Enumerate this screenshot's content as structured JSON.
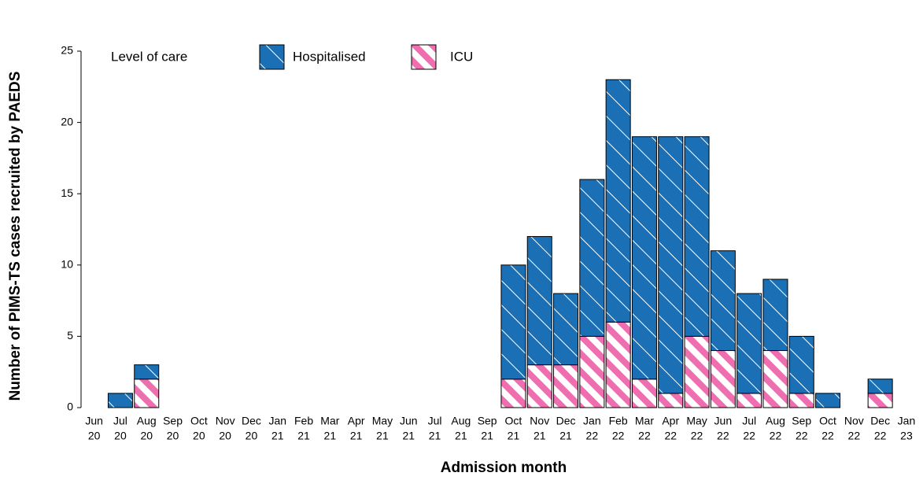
{
  "chart_data": {
    "type": "stacked-bar",
    "y_label": "Number of PIMS-TS cases recruited by PAEDS",
    "x_label": "Admission month",
    "legend_title": "Level of care",
    "categories": [
      [
        "Jun",
        "20"
      ],
      [
        "Jul",
        "20"
      ],
      [
        "Aug",
        "20"
      ],
      [
        "Sep",
        "20"
      ],
      [
        "Oct",
        "20"
      ],
      [
        "Nov",
        "20"
      ],
      [
        "Dec",
        "20"
      ],
      [
        "Jan",
        "21"
      ],
      [
        "Feb",
        "21"
      ],
      [
        "Mar",
        "21"
      ],
      [
        "Apr",
        "21"
      ],
      [
        "May",
        "21"
      ],
      [
        "Jun",
        "21"
      ],
      [
        "Jul",
        "21"
      ],
      [
        "Aug",
        "21"
      ],
      [
        "Sep",
        "21"
      ],
      [
        "Oct",
        "21"
      ],
      [
        "Nov",
        "21"
      ],
      [
        "Dec",
        "21"
      ],
      [
        "Jan",
        "22"
      ],
      [
        "Feb",
        "22"
      ],
      [
        "Mar",
        "22"
      ],
      [
        "Apr",
        "22"
      ],
      [
        "May",
        "22"
      ],
      [
        "Jun",
        "22"
      ],
      [
        "Jul",
        "22"
      ],
      [
        "Aug",
        "22"
      ],
      [
        "Sep",
        "22"
      ],
      [
        "Oct",
        "22"
      ],
      [
        "Nov",
        "22"
      ],
      [
        "Dec",
        "22"
      ],
      [
        "Jan",
        "23"
      ]
    ],
    "series": [
      {
        "name": "ICU",
        "color": "#ee6eb0",
        "values": [
          0,
          0,
          2,
          0,
          0,
          0,
          0,
          0,
          0,
          0,
          0,
          0,
          0,
          0,
          0,
          0,
          2,
          3,
          3,
          5,
          6,
          2,
          1,
          5,
          4,
          1,
          4,
          1,
          0,
          0,
          1,
          0
        ]
      },
      {
        "name": "Hospitalised",
        "color": "#1a6fb5",
        "values": [
          0,
          1,
          1,
          0,
          0,
          0,
          0,
          0,
          0,
          0,
          0,
          0,
          0,
          0,
          0,
          0,
          8,
          9,
          5,
          11,
          17,
          17,
          18,
          14,
          7,
          7,
          5,
          4,
          1,
          0,
          1,
          0
        ]
      }
    ],
    "ylim": [
      0,
      25
    ],
    "yticks": [
      0,
      5,
      10,
      15,
      20,
      25
    ]
  }
}
